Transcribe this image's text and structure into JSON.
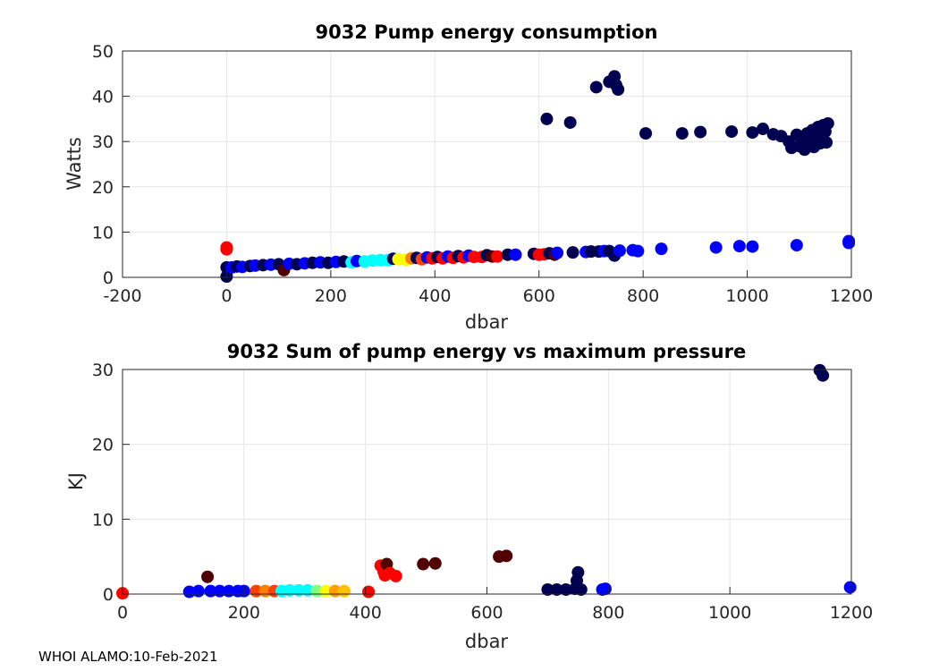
{
  "footer": "WHOI ALAMO:10-Feb-2021",
  "chart_data": [
    {
      "type": "scatter",
      "title": "9032 Pump energy consumption",
      "xlabel": "dbar",
      "ylabel": "Watts",
      "xlim": [
        -200,
        1200
      ],
      "ylim": [
        0,
        50
      ],
      "xticks": [
        -200,
        0,
        200,
        400,
        600,
        800,
        1000,
        1200
      ],
      "yticks": [
        0,
        10,
        20,
        30,
        40,
        50
      ],
      "grid": true,
      "points": [
        {
          "x": 0,
          "y": 6.6,
          "c": "#ff0000"
        },
        {
          "x": 0,
          "y": 6.2,
          "c": "#ff0000"
        },
        {
          "x": 0,
          "y": 2.2,
          "c": "#000050"
        },
        {
          "x": 0,
          "y": 0.2,
          "c": "#000050"
        },
        {
          "x": 10,
          "y": 2.2,
          "c": "#0000ff"
        },
        {
          "x": 20,
          "y": 2.4,
          "c": "#000050"
        },
        {
          "x": 30,
          "y": 2.3,
          "c": "#0000ff"
        },
        {
          "x": 45,
          "y": 2.5,
          "c": "#000050"
        },
        {
          "x": 55,
          "y": 2.6,
          "c": "#0000ff"
        },
        {
          "x": 70,
          "y": 2.7,
          "c": "#000050"
        },
        {
          "x": 85,
          "y": 2.8,
          "c": "#0000ff"
        },
        {
          "x": 100,
          "y": 2.9,
          "c": "#000050"
        },
        {
          "x": 110,
          "y": 1.6,
          "c": "#500000"
        },
        {
          "x": 120,
          "y": 3.0,
          "c": "#0000ff"
        },
        {
          "x": 135,
          "y": 2.9,
          "c": "#000050"
        },
        {
          "x": 150,
          "y": 3.1,
          "c": "#0000ff"
        },
        {
          "x": 165,
          "y": 3.2,
          "c": "#000050"
        },
        {
          "x": 180,
          "y": 3.3,
          "c": "#0000ff"
        },
        {
          "x": 195,
          "y": 3.2,
          "c": "#000050"
        },
        {
          "x": 210,
          "y": 3.4,
          "c": "#0000ff"
        },
        {
          "x": 225,
          "y": 3.5,
          "c": "#000050"
        },
        {
          "x": 240,
          "y": 3.3,
          "c": "#00ffff"
        },
        {
          "x": 250,
          "y": 3.6,
          "c": "#0000ff"
        },
        {
          "x": 265,
          "y": 3.5,
          "c": "#00ffff"
        },
        {
          "x": 280,
          "y": 3.7,
          "c": "#00ffff"
        },
        {
          "x": 295,
          "y": 3.8,
          "c": "#00ffff"
        },
        {
          "x": 310,
          "y": 3.8,
          "c": "#00ffff"
        },
        {
          "x": 320,
          "y": 4.1,
          "c": "#000050"
        },
        {
          "x": 330,
          "y": 4.0,
          "c": "#ffff00"
        },
        {
          "x": 345,
          "y": 3.9,
          "c": "#ffff00"
        },
        {
          "x": 355,
          "y": 4.2,
          "c": "#ff8000"
        },
        {
          "x": 365,
          "y": 4.3,
          "c": "#000050"
        },
        {
          "x": 375,
          "y": 4.0,
          "c": "#ff4000"
        },
        {
          "x": 385,
          "y": 4.4,
          "c": "#0000ff"
        },
        {
          "x": 395,
          "y": 4.2,
          "c": "#ff0000"
        },
        {
          "x": 405,
          "y": 4.5,
          "c": "#000050"
        },
        {
          "x": 415,
          "y": 4.2,
          "c": "#ff0000"
        },
        {
          "x": 425,
          "y": 4.6,
          "c": "#0000ff"
        },
        {
          "x": 435,
          "y": 4.3,
          "c": "#ff0000"
        },
        {
          "x": 445,
          "y": 4.7,
          "c": "#000050"
        },
        {
          "x": 455,
          "y": 4.4,
          "c": "#ff0000"
        },
        {
          "x": 465,
          "y": 4.8,
          "c": "#0000ff"
        },
        {
          "x": 475,
          "y": 4.5,
          "c": "#ff0000"
        },
        {
          "x": 490,
          "y": 4.5,
          "c": "#ff0000"
        },
        {
          "x": 500,
          "y": 4.9,
          "c": "#000050"
        },
        {
          "x": 510,
          "y": 4.6,
          "c": "#500000"
        },
        {
          "x": 520,
          "y": 4.6,
          "c": "#ff0000"
        },
        {
          "x": 540,
          "y": 5.0,
          "c": "#000050"
        },
        {
          "x": 555,
          "y": 5.0,
          "c": "#0000ff"
        },
        {
          "x": 590,
          "y": 5.2,
          "c": "#000050"
        },
        {
          "x": 600,
          "y": 5.0,
          "c": "#ff0000"
        },
        {
          "x": 610,
          "y": 5.1,
          "c": "#ff0000"
        },
        {
          "x": 620,
          "y": 5.3,
          "c": "#000050"
        },
        {
          "x": 630,
          "y": 5.0,
          "c": "#500000"
        },
        {
          "x": 635,
          "y": 5.4,
          "c": "#0000ff"
        },
        {
          "x": 665,
          "y": 5.5,
          "c": "#000050"
        },
        {
          "x": 690,
          "y": 5.6,
          "c": "#0000ff"
        },
        {
          "x": 700,
          "y": 5.7,
          "c": "#000050"
        },
        {
          "x": 715,
          "y": 5.7,
          "c": "#000050"
        },
        {
          "x": 725,
          "y": 5.8,
          "c": "#0000ff"
        },
        {
          "x": 735,
          "y": 5.8,
          "c": "#000050"
        },
        {
          "x": 745,
          "y": 4.8,
          "c": "#000050"
        },
        {
          "x": 755,
          "y": 5.9,
          "c": "#0000ff"
        },
        {
          "x": 780,
          "y": 6.0,
          "c": "#0000ff"
        },
        {
          "x": 790,
          "y": 5.8,
          "c": "#0000ff"
        },
        {
          "x": 835,
          "y": 6.3,
          "c": "#0000ff"
        },
        {
          "x": 940,
          "y": 6.6,
          "c": "#0000ff"
        },
        {
          "x": 985,
          "y": 6.9,
          "c": "#0000ff"
        },
        {
          "x": 1010,
          "y": 6.8,
          "c": "#0000ff"
        },
        {
          "x": 1095,
          "y": 7.1,
          "c": "#0000ff"
        },
        {
          "x": 1195,
          "y": 7.6,
          "c": "#0000ff"
        },
        {
          "x": 1195,
          "y": 8.0,
          "c": "#0000ff"
        },
        {
          "x": 615,
          "y": 35.0,
          "c": "#000050"
        },
        {
          "x": 660,
          "y": 34.2,
          "c": "#000050"
        },
        {
          "x": 710,
          "y": 42.0,
          "c": "#000050"
        },
        {
          "x": 735,
          "y": 43.2,
          "c": "#000050"
        },
        {
          "x": 745,
          "y": 44.4,
          "c": "#000050"
        },
        {
          "x": 748,
          "y": 42.5,
          "c": "#000050"
        },
        {
          "x": 752,
          "y": 41.5,
          "c": "#000050"
        },
        {
          "x": 805,
          "y": 31.8,
          "c": "#000050"
        },
        {
          "x": 875,
          "y": 31.8,
          "c": "#000050"
        },
        {
          "x": 910,
          "y": 32.1,
          "c": "#000050"
        },
        {
          "x": 970,
          "y": 32.2,
          "c": "#000050"
        },
        {
          "x": 1010,
          "y": 32.0,
          "c": "#000050"
        },
        {
          "x": 1030,
          "y": 32.8,
          "c": "#000050"
        },
        {
          "x": 1050,
          "y": 31.6,
          "c": "#000050"
        },
        {
          "x": 1065,
          "y": 31.2,
          "c": "#000050"
        },
        {
          "x": 1080,
          "y": 30.0,
          "c": "#000050"
        },
        {
          "x": 1085,
          "y": 28.6,
          "c": "#000050"
        },
        {
          "x": 1095,
          "y": 31.5,
          "c": "#000050"
        },
        {
          "x": 1100,
          "y": 29.0,
          "c": "#000050"
        },
        {
          "x": 1105,
          "y": 30.5,
          "c": "#000050"
        },
        {
          "x": 1110,
          "y": 28.2,
          "c": "#000050"
        },
        {
          "x": 1115,
          "y": 31.8,
          "c": "#000050"
        },
        {
          "x": 1120,
          "y": 29.5,
          "c": "#000050"
        },
        {
          "x": 1125,
          "y": 32.5,
          "c": "#000050"
        },
        {
          "x": 1128,
          "y": 28.8,
          "c": "#000050"
        },
        {
          "x": 1132,
          "y": 30.8,
          "c": "#000050"
        },
        {
          "x": 1136,
          "y": 33.2,
          "c": "#000050"
        },
        {
          "x": 1140,
          "y": 29.6,
          "c": "#000050"
        },
        {
          "x": 1143,
          "y": 31.5,
          "c": "#000050"
        },
        {
          "x": 1146,
          "y": 33.6,
          "c": "#000050"
        },
        {
          "x": 1150,
          "y": 32.2,
          "c": "#000050"
        },
        {
          "x": 1152,
          "y": 29.8,
          "c": "#000050"
        },
        {
          "x": 1155,
          "y": 34.0,
          "c": "#000050"
        }
      ]
    },
    {
      "type": "scatter",
      "title": "9032 Sum of pump energy vs maximum pressure",
      "xlabel": "dbar",
      "ylabel": "KJ",
      "xlim": [
        0,
        1200
      ],
      "ylim": [
        0,
        30
      ],
      "xticks": [
        0,
        200,
        400,
        600,
        800,
        1000,
        1200
      ],
      "yticks": [
        0,
        10,
        20,
        30
      ],
      "grid": true,
      "points": [
        {
          "x": 0,
          "y": 0.1,
          "c": "#ff0000"
        },
        {
          "x": 110,
          "y": 0.3,
          "c": "#0000ff"
        },
        {
          "x": 125,
          "y": 0.4,
          "c": "#0000ff"
        },
        {
          "x": 140,
          "y": 2.3,
          "c": "#500000"
        },
        {
          "x": 145,
          "y": 0.4,
          "c": "#0000ff"
        },
        {
          "x": 160,
          "y": 0.4,
          "c": "#0000ff"
        },
        {
          "x": 175,
          "y": 0.4,
          "c": "#0000ff"
        },
        {
          "x": 190,
          "y": 0.4,
          "c": "#0000ff"
        },
        {
          "x": 200,
          "y": 0.4,
          "c": "#0000ff"
        },
        {
          "x": 220,
          "y": 0.4,
          "c": "#ff4000"
        },
        {
          "x": 235,
          "y": 0.4,
          "c": "#ff8000"
        },
        {
          "x": 250,
          "y": 0.4,
          "c": "#ff4000"
        },
        {
          "x": 262,
          "y": 0.4,
          "c": "#00ffff"
        },
        {
          "x": 275,
          "y": 0.5,
          "c": "#00ffff"
        },
        {
          "x": 290,
          "y": 0.5,
          "c": "#00ffff"
        },
        {
          "x": 305,
          "y": 0.5,
          "c": "#00ffff"
        },
        {
          "x": 320,
          "y": 0.4,
          "c": "#80ff80"
        },
        {
          "x": 335,
          "y": 0.4,
          "c": "#ffff00"
        },
        {
          "x": 350,
          "y": 0.4,
          "c": "#ffa000"
        },
        {
          "x": 365,
          "y": 0.4,
          "c": "#ffc000"
        },
        {
          "x": 405,
          "y": 0.3,
          "c": "#ff0000"
        },
        {
          "x": 425,
          "y": 3.8,
          "c": "#ff0000"
        },
        {
          "x": 430,
          "y": 3.0,
          "c": "#ff0000"
        },
        {
          "x": 432,
          "y": 2.5,
          "c": "#ff0000"
        },
        {
          "x": 435,
          "y": 4.0,
          "c": "#500000"
        },
        {
          "x": 440,
          "y": 2.8,
          "c": "#ff0000"
        },
        {
          "x": 450,
          "y": 2.4,
          "c": "#ff0000"
        },
        {
          "x": 495,
          "y": 4.0,
          "c": "#500000"
        },
        {
          "x": 515,
          "y": 4.1,
          "c": "#500000"
        },
        {
          "x": 620,
          "y": 5.0,
          "c": "#500000"
        },
        {
          "x": 632,
          "y": 5.1,
          "c": "#500000"
        },
        {
          "x": 700,
          "y": 0.6,
          "c": "#000050"
        },
        {
          "x": 715,
          "y": 0.6,
          "c": "#000050"
        },
        {
          "x": 730,
          "y": 0.6,
          "c": "#000050"
        },
        {
          "x": 745,
          "y": 0.7,
          "c": "#000050"
        },
        {
          "x": 750,
          "y": 2.9,
          "c": "#000050"
        },
        {
          "x": 748,
          "y": 1.8,
          "c": "#000050"
        },
        {
          "x": 755,
          "y": 0.6,
          "c": "#000050"
        },
        {
          "x": 790,
          "y": 0.6,
          "c": "#0000ff"
        },
        {
          "x": 795,
          "y": 0.7,
          "c": "#0000ff"
        },
        {
          "x": 1148,
          "y": 29.9,
          "c": "#000050"
        },
        {
          "x": 1153,
          "y": 29.2,
          "c": "#000050"
        },
        {
          "x": 1198,
          "y": 0.9,
          "c": "#0000ff"
        }
      ]
    }
  ]
}
